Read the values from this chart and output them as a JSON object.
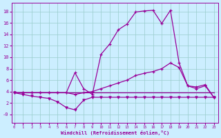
{
  "xlabel": "Windchill (Refroidissement éolien,°C)",
  "bg_color": "#cceeff",
  "line_color": "#990099",
  "grid_color": "#99cccc",
  "x_ticks": [
    0,
    1,
    2,
    3,
    4,
    5,
    6,
    7,
    8,
    9,
    10,
    11,
    12,
    13,
    14,
    15,
    16,
    17,
    18,
    19,
    20,
    21,
    22,
    23
  ],
  "y_ticks": [
    0,
    2,
    4,
    6,
    8,
    10,
    12,
    14,
    16,
    18
  ],
  "y_tick_labels": [
    "-0",
    "2",
    "4",
    "6",
    "8",
    "10",
    "12",
    "14",
    "16",
    "18"
  ],
  "xlim": [
    -0.3,
    23.5
  ],
  "ylim": [
    -1.5,
    19.5
  ],
  "curve1_x": [
    0,
    1,
    2,
    3,
    4,
    5,
    6,
    7,
    8,
    9,
    10,
    11,
    12,
    13,
    14,
    15,
    16,
    17,
    18,
    19,
    20,
    21,
    22,
    23
  ],
  "curve1_y": [
    3.8,
    3.8,
    3.8,
    3.8,
    3.8,
    3.8,
    3.8,
    7.3,
    4.5,
    3.5,
    10.5,
    12.3,
    14.8,
    15.8,
    17.9,
    18.1,
    18.2,
    15.9,
    18.2,
    9.0,
    5.0,
    4.8,
    5.2,
    3.0
  ],
  "curve2_x": [
    0,
    1,
    2,
    3,
    4,
    5,
    6,
    7,
    8,
    9,
    10,
    11,
    12,
    13,
    14,
    15,
    16,
    17,
    18,
    19,
    20,
    21,
    22,
    23
  ],
  "curve2_y": [
    3.8,
    3.8,
    3.8,
    3.8,
    3.8,
    3.8,
    3.8,
    3.5,
    3.8,
    4.0,
    4.5,
    5.0,
    5.5,
    6.0,
    6.8,
    7.2,
    7.5,
    8.0,
    9.0,
    8.2,
    5.0,
    4.5,
    5.0,
    3.0
  ],
  "curve3_x": [
    0,
    1,
    2,
    3,
    4,
    5,
    6,
    7,
    8,
    9,
    10,
    11,
    12,
    13,
    14,
    15,
    16,
    17,
    18,
    19,
    20,
    21,
    22,
    23
  ],
  "curve3_y": [
    3.8,
    3.5,
    3.2,
    3.0,
    2.8,
    2.2,
    1.2,
    0.8,
    2.5,
    3.0,
    3.0,
    3.0,
    3.0,
    3.0,
    3.0,
    3.0,
    3.0,
    3.0,
    3.0,
    3.0,
    3.0,
    3.0,
    3.0,
    3.0
  ],
  "curve4_x": [
    0,
    1,
    2,
    3,
    4,
    5,
    6,
    7,
    8,
    9,
    10,
    11,
    12,
    13,
    14,
    15,
    16,
    17,
    18,
    19,
    20,
    21,
    22,
    23
  ],
  "curve4_y": [
    3.8,
    3.8,
    3.8,
    3.8,
    3.8,
    3.8,
    3.8,
    3.8,
    3.8,
    3.8,
    3.8,
    3.8,
    3.8,
    3.8,
    3.8,
    3.8,
    3.8,
    3.8,
    3.8,
    3.8,
    3.8,
    3.8,
    3.8,
    3.8
  ]
}
